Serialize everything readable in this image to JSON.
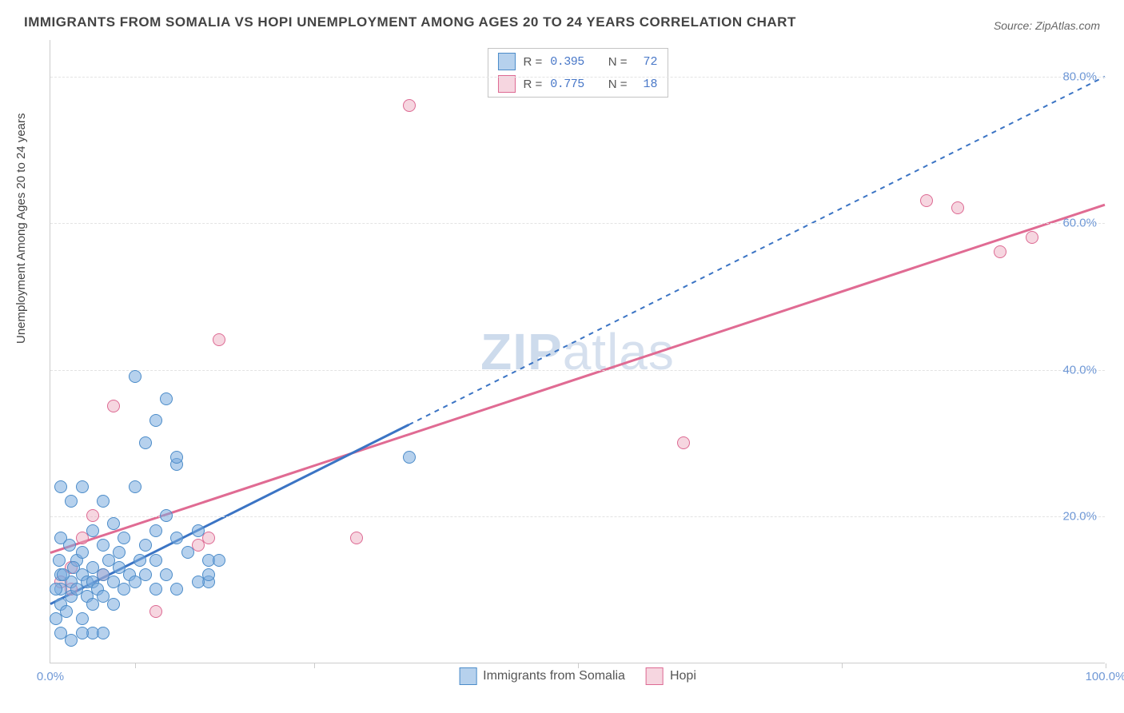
{
  "title": "IMMIGRANTS FROM SOMALIA VS HOPI UNEMPLOYMENT AMONG AGES 20 TO 24 YEARS CORRELATION CHART",
  "source": "Source: ZipAtlas.com",
  "ylabel": "Unemployment Among Ages 20 to 24 years",
  "watermark_bold": "ZIP",
  "watermark_light": "atlas",
  "chart": {
    "type": "scatter",
    "background_color": "#ffffff",
    "grid_color": "#e3e3e3",
    "axis_color": "#cccccc",
    "tick_label_color": "#6f98d6",
    "xlim": [
      0,
      100
    ],
    "ylim": [
      0,
      85
    ],
    "xtick_labels": [
      "0.0%",
      "100.0%"
    ],
    "xtick_positions": [
      0,
      100
    ],
    "x_minor_tick_positions": [
      8,
      25,
      50,
      75,
      100
    ],
    "ytick_labels": [
      "20.0%",
      "40.0%",
      "60.0%",
      "80.0%"
    ],
    "ytick_positions": [
      20,
      40,
      60,
      80
    ],
    "series_a": {
      "name": "Immigrants from Somalia",
      "fill": "rgba(122,172,222,0.55)",
      "stroke": "#4c8cc9",
      "r_value": "0.395",
      "n_value": "72",
      "trend": {
        "x1": 0,
        "y1": 8,
        "x2": 100,
        "y2": 80,
        "dash": "6 6",
        "solid_until_x": 34,
        "color": "#3b74c4"
      },
      "points": [
        [
          1,
          8
        ],
        [
          1,
          10
        ],
        [
          1,
          12
        ],
        [
          1.5,
          7
        ],
        [
          2,
          11
        ],
        [
          2,
          9
        ],
        [
          2.5,
          14
        ],
        [
          2.5,
          10
        ],
        [
          3,
          6
        ],
        [
          3,
          15
        ],
        [
          3,
          12
        ],
        [
          3.5,
          11
        ],
        [
          3.5,
          9
        ],
        [
          4,
          13
        ],
        [
          4,
          11
        ],
        [
          4,
          8
        ],
        [
          4.5,
          10
        ],
        [
          5,
          16
        ],
        [
          5,
          12
        ],
        [
          5,
          9
        ],
        [
          5.5,
          14
        ],
        [
          6,
          19
        ],
        [
          6,
          11
        ],
        [
          6,
          8
        ],
        [
          6.5,
          13
        ],
        [
          6.5,
          15
        ],
        [
          7,
          10
        ],
        [
          7,
          17
        ],
        [
          7.5,
          12
        ],
        [
          8,
          24
        ],
        [
          8,
          11
        ],
        [
          8.5,
          14
        ],
        [
          9,
          16
        ],
        [
          9,
          12
        ],
        [
          10,
          18
        ],
        [
          10,
          10
        ],
        [
          10,
          14
        ],
        [
          11,
          20
        ],
        [
          11,
          12
        ],
        [
          12,
          17
        ],
        [
          12,
          10
        ],
        [
          12,
          27
        ],
        [
          13,
          15
        ],
        [
          14,
          18
        ],
        [
          15,
          11
        ],
        [
          15,
          14
        ],
        [
          3,
          24
        ],
        [
          2,
          22
        ],
        [
          1,
          17
        ],
        [
          4,
          18
        ],
        [
          5,
          22
        ],
        [
          1,
          4
        ],
        [
          2,
          3
        ],
        [
          4,
          4
        ],
        [
          3,
          4
        ],
        [
          0.5,
          10
        ],
        [
          0.8,
          14
        ],
        [
          0.5,
          6
        ],
        [
          1.2,
          12
        ],
        [
          1.8,
          16
        ],
        [
          2.2,
          13
        ],
        [
          10,
          33
        ],
        [
          11,
          36
        ],
        [
          9,
          30
        ],
        [
          8,
          39
        ],
        [
          34,
          28
        ],
        [
          12,
          28
        ],
        [
          1,
          24
        ],
        [
          14,
          11
        ],
        [
          15,
          12
        ],
        [
          16,
          14
        ],
        [
          5,
          4
        ]
      ]
    },
    "series_b": {
      "name": "Hopi",
      "fill": "rgba(236,163,186,0.45)",
      "stroke": "#dd6a93",
      "r_value": "0.775",
      "n_value": "18",
      "trend": {
        "x1": 0,
        "y1": 15,
        "x2": 100,
        "y2": 62.5,
        "dash": "",
        "solid_until_x": 100,
        "color": "#e06b93"
      },
      "points": [
        [
          1,
          11
        ],
        [
          2,
          13
        ],
        [
          2,
          10
        ],
        [
          3,
          17
        ],
        [
          4,
          20
        ],
        [
          5,
          12
        ],
        [
          6,
          35
        ],
        [
          10,
          7
        ],
        [
          14,
          16
        ],
        [
          15,
          17
        ],
        [
          16,
          44
        ],
        [
          29,
          17
        ],
        [
          34,
          76
        ],
        [
          60,
          30
        ],
        [
          83,
          63
        ],
        [
          86,
          62
        ],
        [
          90,
          56
        ],
        [
          93,
          58
        ]
      ]
    }
  },
  "legend_top": {
    "r_label": "R =",
    "n_label": "N ="
  },
  "legend_bottom_labels": {
    "a": "Immigrants from Somalia",
    "b": "Hopi"
  }
}
